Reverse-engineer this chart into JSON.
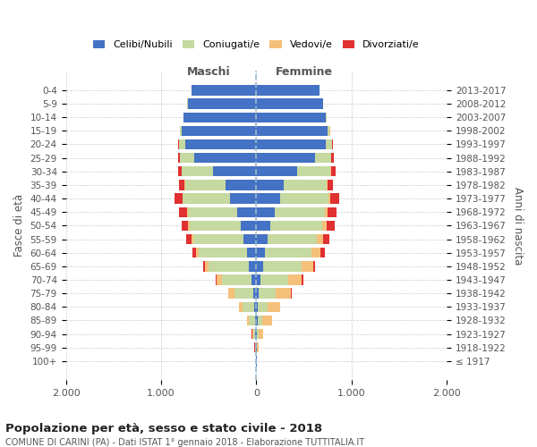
{
  "age_groups": [
    "100+",
    "95-99",
    "90-94",
    "85-89",
    "80-84",
    "75-79",
    "70-74",
    "65-69",
    "60-64",
    "55-59",
    "50-54",
    "45-49",
    "40-44",
    "35-39",
    "30-34",
    "25-29",
    "20-24",
    "15-19",
    "10-14",
    "5-9",
    "0-4"
  ],
  "birth_years": [
    "≤ 1917",
    "1918-1922",
    "1923-1927",
    "1928-1932",
    "1933-1937",
    "1938-1942",
    "1943-1947",
    "1948-1952",
    "1953-1957",
    "1958-1962",
    "1963-1967",
    "1968-1972",
    "1973-1977",
    "1978-1982",
    "1983-1987",
    "1988-1992",
    "1993-1997",
    "1998-2002",
    "2003-2007",
    "2008-2012",
    "2013-2017"
  ],
  "male_celibi": [
    2,
    5,
    10,
    15,
    20,
    30,
    50,
    80,
    100,
    130,
    160,
    200,
    280,
    320,
    450,
    650,
    750,
    780,
    760,
    720,
    680
  ],
  "male_coniugati": [
    2,
    8,
    25,
    60,
    120,
    200,
    310,
    420,
    500,
    530,
    540,
    520,
    490,
    430,
    330,
    150,
    60,
    20,
    5,
    2,
    2
  ],
  "male_vedovi": [
    1,
    3,
    10,
    20,
    40,
    60,
    55,
    40,
    30,
    20,
    15,
    10,
    5,
    3,
    2,
    2,
    2,
    1,
    0,
    0,
    0
  ],
  "male_divorziati": [
    0,
    1,
    2,
    3,
    5,
    8,
    12,
    18,
    40,
    55,
    65,
    80,
    85,
    55,
    40,
    20,
    5,
    2,
    0,
    0,
    0
  ],
  "female_celibi": [
    2,
    5,
    8,
    12,
    18,
    25,
    40,
    70,
    90,
    120,
    150,
    190,
    250,
    290,
    430,
    620,
    730,
    750,
    730,
    700,
    660
  ],
  "female_coniugati": [
    2,
    6,
    20,
    50,
    100,
    180,
    300,
    410,
    490,
    520,
    540,
    530,
    510,
    450,
    350,
    165,
    65,
    22,
    5,
    2,
    2
  ],
  "female_vedovi": [
    3,
    15,
    45,
    100,
    130,
    160,
    140,
    120,
    90,
    65,
    50,
    30,
    15,
    8,
    4,
    3,
    2,
    1,
    0,
    0,
    0
  ],
  "female_divorziati": [
    0,
    1,
    2,
    4,
    6,
    10,
    15,
    20,
    50,
    65,
    80,
    95,
    100,
    60,
    45,
    25,
    8,
    3,
    0,
    0,
    0
  ],
  "color_celibi": "#4472c4",
  "color_coniugati": "#c5d9a0",
  "color_vedovi": "#f5c07a",
  "color_divorziati": "#e03030",
  "xlim": 2000,
  "title": "Popolazione per età, sesso e stato civile - 2018",
  "subtitle": "COMUNE DI CARINI (PA) - Dati ISTAT 1° gennaio 2018 - Elaborazione TUTTITALIA.IT",
  "ylabel_left": "Fasce di età",
  "ylabel_right": "Anni di nascita",
  "xlabel_left": "Maschi",
  "xlabel_right": "Femmine",
  "xticks": [
    -2000,
    -1000,
    0,
    1000,
    2000
  ],
  "xticklabels": [
    "2.000",
    "1.000",
    "0",
    "1.000",
    "2.000"
  ],
  "legend_labels": [
    "Celibi/Nubili",
    "Coniugati/e",
    "Vedovi/e",
    "Divorziati/e"
  ]
}
